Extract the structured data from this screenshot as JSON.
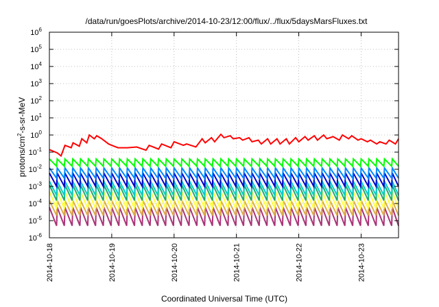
{
  "chart_data": {
    "type": "line",
    "title": "/data/run/goesPlots/archive/2014-10-23/12:00/flux/../flux/5daysMarsFluxes.txt",
    "xlabel": "Coordinated Universal Time (UTC)",
    "ylabel": {
      "prefix": "protons/cm",
      "exponent": "2",
      "suffix": "-s-sr-MeV"
    },
    "xlim": [
      0,
      5.6
    ],
    "x_unit": "days from 2014-10-18 00:00 UTC",
    "x_ticks": [
      {
        "value": 0,
        "label": "2014-10-18"
      },
      {
        "value": 1,
        "label": "2014-10-19"
      },
      {
        "value": 2,
        "label": "2014-10-20"
      },
      {
        "value": 3,
        "label": "2014-10-21"
      },
      {
        "value": 4,
        "label": "2014-10-22"
      },
      {
        "value": 5,
        "label": "2014-10-23"
      }
    ],
    "y_scale": "log",
    "ylim": [
      1e-06,
      1000000.0
    ],
    "y_ticks": [
      {
        "exp": -6
      },
      {
        "exp": -5
      },
      {
        "exp": -4
      },
      {
        "exp": -3
      },
      {
        "exp": -2
      },
      {
        "exp": -1
      },
      {
        "exp": 0
      },
      {
        "exp": 1
      },
      {
        "exp": 2
      },
      {
        "exp": 3
      },
      {
        "exp": 4
      },
      {
        "exp": 5
      },
      {
        "exp": 6
      }
    ],
    "y_tick_base": "10",
    "grid": true,
    "legend": "none",
    "series": [
      {
        "color": "#ff0000",
        "x": [
          0,
          0.125,
          0.1875,
          0.25,
          0.35,
          0.38,
          0.48,
          0.52,
          0.6,
          0.64,
          0.72,
          0.76,
          0.84,
          0.95,
          1.0,
          1.1,
          1.25,
          1.4,
          1.55,
          1.6,
          1.75,
          1.8,
          1.95,
          2.0,
          2.15,
          2.2,
          2.35,
          2.45,
          2.5,
          2.6,
          2.65,
          2.75,
          2.8,
          2.9,
          2.95,
          3.05,
          3.1,
          3.2,
          3.25,
          3.35,
          3.4,
          3.5,
          3.55,
          3.65,
          3.7,
          3.8,
          3.85,
          3.95,
          4.0,
          4.1,
          4.15,
          4.25,
          4.3,
          4.4,
          4.45,
          4.55,
          4.65,
          4.7,
          4.8,
          4.85,
          4.95,
          5.0,
          5.1,
          5.15,
          5.25,
          5.3,
          5.4,
          5.45,
          5.55,
          5.6
        ],
        "y": [
          0.14,
          0.09,
          0.06,
          0.25,
          0.18,
          0.35,
          0.22,
          0.6,
          0.35,
          1.0,
          0.6,
          0.9,
          0.6,
          0.3,
          0.25,
          0.18,
          0.18,
          0.2,
          0.13,
          0.25,
          0.15,
          0.3,
          0.18,
          0.4,
          0.25,
          0.3,
          0.2,
          0.6,
          0.35,
          0.7,
          0.4,
          1.1,
          0.7,
          0.9,
          0.6,
          0.7,
          0.5,
          0.7,
          0.4,
          0.5,
          0.3,
          0.6,
          0.3,
          0.6,
          0.3,
          0.6,
          0.3,
          0.7,
          0.4,
          0.8,
          0.5,
          0.9,
          0.5,
          1.0,
          0.6,
          0.8,
          0.5,
          1.0,
          0.6,
          0.9,
          0.5,
          0.6,
          0.4,
          0.5,
          0.3,
          0.4,
          0.3,
          0.5,
          0.3,
          0.6
        ]
      },
      {
        "color": "#00ff00",
        "sawtooth": {
          "start": 0,
          "end": 5.6,
          "period": 0.125,
          "high": 0.04,
          "low": 0.015
        }
      },
      {
        "color": "#0088ff",
        "sawtooth": {
          "start": 0,
          "end": 5.6,
          "period": 0.125,
          "high": 0.012,
          "low": 0.003
        }
      },
      {
        "color": "#0000cc",
        "sawtooth": {
          "start": 0,
          "end": 5.6,
          "period": 0.125,
          "high": 0.006,
          "low": 0.001
        }
      },
      {
        "color": "#00cccc",
        "sawtooth": {
          "start": 0,
          "end": 5.6,
          "period": 0.125,
          "high": 0.002,
          "low": 0.0003
        }
      },
      {
        "color": "#22aa66",
        "sawtooth": {
          "start": 0,
          "end": 5.6,
          "period": 0.125,
          "high": 0.0012,
          "low": 0.00015
        }
      },
      {
        "color": "#ffff44",
        "sawtooth": {
          "start": 0,
          "end": 5.6,
          "period": 0.125,
          "high": 0.0005,
          "low": 5e-05
        }
      },
      {
        "color": "#ddaa44",
        "sawtooth": {
          "start": 0,
          "end": 5.6,
          "period": 0.125,
          "high": 0.00015,
          "low": 2e-05
        }
      },
      {
        "color": "#aa3377",
        "sawtooth": {
          "start": 0,
          "end": 5.6,
          "period": 0.125,
          "high": 6e-05,
          "low": 5e-06
        }
      }
    ]
  }
}
